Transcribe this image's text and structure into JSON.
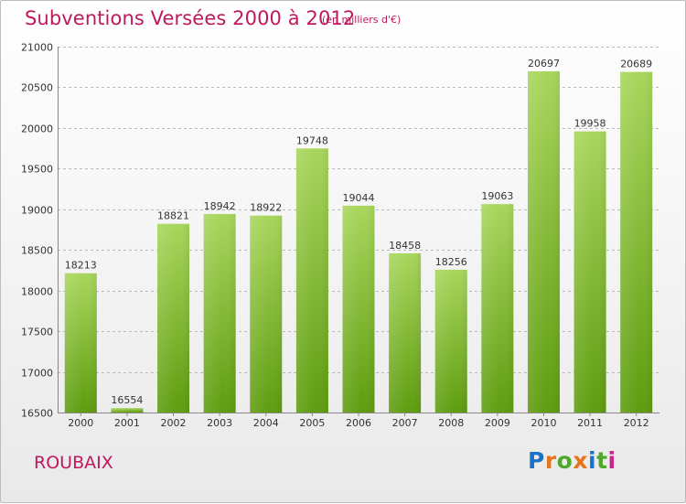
{
  "header": {
    "title": "Subventions Versées 2000 à 2012",
    "unit": "(en milliers d'€)"
  },
  "footer": {
    "commune": "ROUBAIX",
    "logo": {
      "letters": [
        "P",
        "r",
        "o",
        "x",
        "i",
        "t",
        "i"
      ],
      "colors": [
        "#1a73c8",
        "#e8731a",
        "#4fa82a",
        "#e8731a",
        "#1a73c8",
        "#4fa82a",
        "#d0208a"
      ]
    }
  },
  "colors": {
    "title": "#c0185c",
    "bar_light": "#a8d65c",
    "bar_dark": "#5e9c0f",
    "grid": "#b9b9b9"
  },
  "chart_data": {
    "type": "bar",
    "title": "Subventions Versées 2000 à 2012",
    "subtitle": "(en milliers d'€)",
    "categories": [
      "2000",
      "2001",
      "2002",
      "2003",
      "2004",
      "2005",
      "2006",
      "2007",
      "2008",
      "2009",
      "2010",
      "2011",
      "2012"
    ],
    "values": [
      18213,
      16554,
      18821,
      18942,
      18922,
      19748,
      19044,
      18458,
      18256,
      19063,
      20697,
      19958,
      20689
    ],
    "ylim": [
      16500,
      21000
    ],
    "yticks": [
      16500,
      17000,
      17500,
      18000,
      18500,
      19000,
      19500,
      20000,
      20500,
      21000
    ],
    "grid": true,
    "data_labels": true
  }
}
